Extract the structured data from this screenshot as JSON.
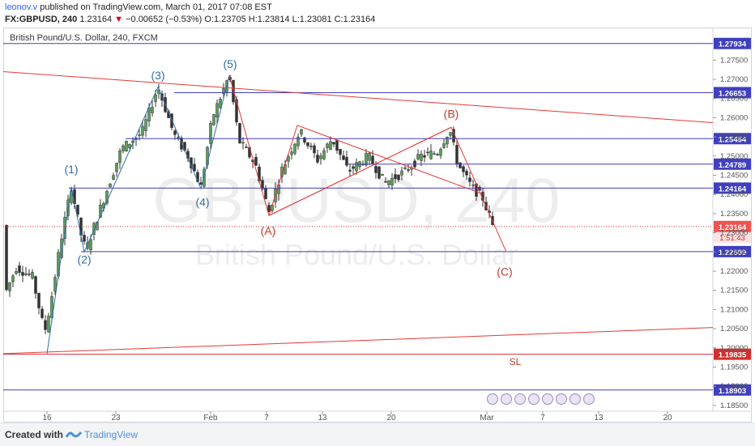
{
  "header": {
    "author": "leonov.v",
    "published_text": "published on TradingView.com, March 01, 2017 07:08 EST",
    "symbol": "FX:GBPUSD, 240",
    "last": "1.23164",
    "change": "−0.00652 (−0.53%)",
    "ohlc": "O:1.23705 H:1.23814 L:1.23081 C:1.23164",
    "arrow": "▼"
  },
  "chart_title": "British Pound/U.S. Dollar, 240, FXCM",
  "watermark": {
    "symbol": "GBPUSD, 240",
    "name": "British Pound/U.S. Dollar"
  },
  "footer": {
    "created": "Created with",
    "brand": "TradingView"
  },
  "chart_data": {
    "type": "candlestick",
    "title": "British Pound/U.S. Dollar, 240, FXCM",
    "ylim": [
      1.1835,
      1.2835
    ],
    "y_ticks": [
      "1.27500",
      "1.27000",
      "1.26500",
      "1.26000",
      "1.25500",
      "1.25000",
      "1.24500",
      "1.24000",
      "1.23500",
      "1.23000",
      "1.22500",
      "1.22000",
      "1.21500",
      "1.21000",
      "1.20500",
      "1.20000",
      "1.19500",
      "1.19000",
      "1.18500"
    ],
    "x_ticks": [
      {
        "label": "16",
        "x": 58
      },
      {
        "label": "23",
        "x": 143
      },
      {
        "label": "Feb",
        "x": 260
      },
      {
        "label": "7",
        "x": 329
      },
      {
        "label": "13",
        "x": 398
      },
      {
        "label": "20",
        "x": 483
      },
      {
        "label": "Mar",
        "x": 601
      },
      {
        "label": "7",
        "x": 670
      },
      {
        "label": "13",
        "x": 739
      },
      {
        "label": "20",
        "x": 824
      }
    ],
    "horizontal_levels": [
      {
        "label": "1.27934",
        "value": 1.27934,
        "color": "#3f3fbf"
      },
      {
        "label": "1.26653",
        "value": 1.26653,
        "color": "#3f3fbf"
      },
      {
        "label": "1.25454",
        "value": 1.25454,
        "color": "#3f3fbf"
      },
      {
        "label": "1.24789",
        "value": 1.24789,
        "color": "#3f3fbf"
      },
      {
        "label": "1.24164",
        "value": 1.24164,
        "color": "#3f3fbf"
      },
      {
        "label": "1.22509",
        "value": 1.22509,
        "color": "#3f3fbf"
      },
      {
        "label": "1.19835",
        "value": 1.19835,
        "color": "#d32f2f"
      },
      {
        "label": "1.18903",
        "value": 1.18903,
        "color": "#3f3fbf"
      }
    ],
    "last_price": {
      "label": "1.23164",
      "value": 1.23164,
      "countdown": "1:51:43"
    },
    "wave_labels": [
      {
        "text": "(1)",
        "x": 88,
        "y": 1.2455,
        "color": "#2e6da4"
      },
      {
        "text": "(2)",
        "x": 104,
        "y": 1.222,
        "color": "#2e6da4"
      },
      {
        "text": "(3)",
        "x": 195,
        "y": 1.27,
        "color": "#2e6da4"
      },
      {
        "text": "(4)",
        "x": 250,
        "y": 1.237,
        "color": "#2e6da4"
      },
      {
        "text": "(5)",
        "x": 284,
        "y": 1.273,
        "color": "#2e6da4"
      },
      {
        "text": "(A)",
        "x": 331,
        "y": 1.2295,
        "color": "#c0392b"
      },
      {
        "text": "(B)",
        "x": 557,
        "y": 1.26,
        "color": "#c0392b"
      },
      {
        "text": "(C)",
        "x": 623,
        "y": 1.2188,
        "color": "#c0392b"
      }
    ],
    "annotations": [
      {
        "text": "SL",
        "x": 636,
        "y": 1.1955,
        "color": "#c0392b"
      }
    ]
  }
}
